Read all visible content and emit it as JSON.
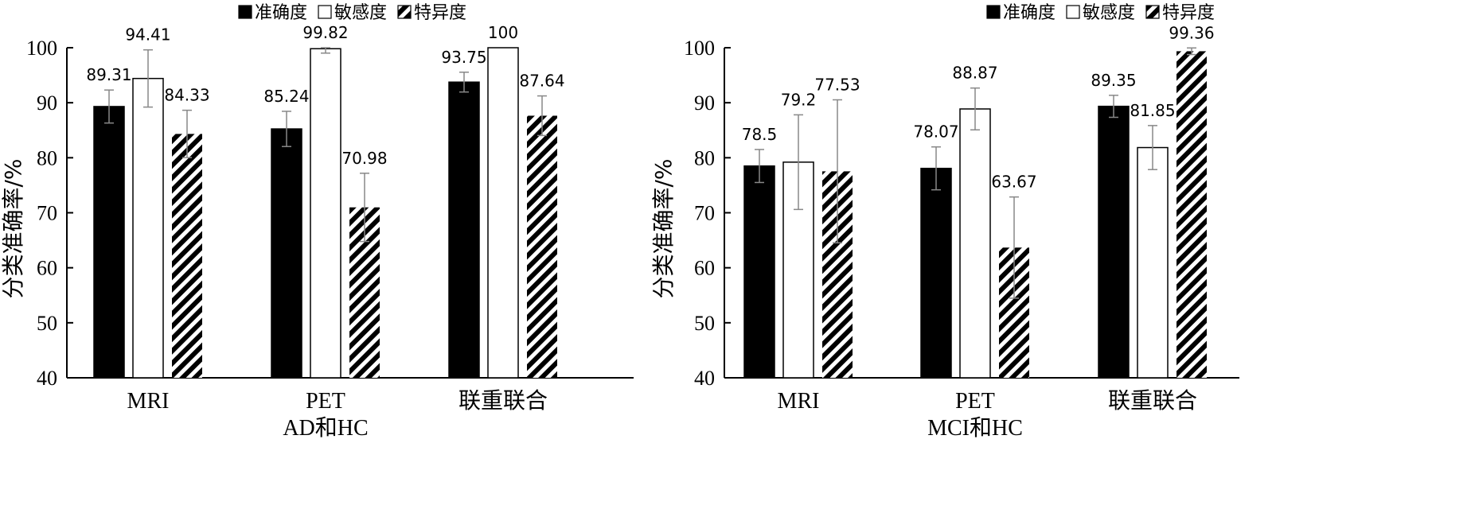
{
  "chart_data": [
    {
      "type": "bar",
      "title": "",
      "xlabel": "AD和HC",
      "ylabel": "分类准确率/%",
      "ylim": [
        40,
        100
      ],
      "yticks": [
        40,
        50,
        60,
        70,
        80,
        90,
        100
      ],
      "categories": [
        "MRI",
        "PET",
        "联重联合"
      ],
      "series": [
        {
          "name": "准确度",
          "values": [
            89.31,
            85.24,
            93.75
          ],
          "errors": [
            3.0,
            3.2,
            1.8
          ],
          "color": "#000000",
          "pattern": "solid"
        },
        {
          "name": "敏感度",
          "values": [
            94.41,
            99.82,
            100
          ],
          "errors": [
            5.2,
            0.8,
            0
          ],
          "color": "#ffffff",
          "pattern": "hollow"
        },
        {
          "name": "特异度",
          "values": [
            84.33,
            70.98,
            87.64
          ],
          "errors": [
            4.3,
            6.2,
            3.6
          ],
          "color": "#000000",
          "pattern": "hatch"
        }
      ],
      "legend": "top-center"
    },
    {
      "type": "bar",
      "title": "",
      "xlabel": "MCI和HC",
      "ylabel": "分类准确率/%",
      "ylim": [
        40,
        100
      ],
      "yticks": [
        40,
        50,
        60,
        70,
        80,
        90,
        100
      ],
      "categories": [
        "MRI",
        "PET",
        "联重联合"
      ],
      "series": [
        {
          "name": "准确度",
          "values": [
            78.5,
            78.07,
            89.35
          ],
          "errors": [
            3.0,
            3.9,
            2.0
          ],
          "color": "#000000",
          "pattern": "solid"
        },
        {
          "name": "敏感度",
          "values": [
            79.2,
            88.87,
            81.85
          ],
          "errors": [
            8.6,
            3.8,
            4.0
          ],
          "color": "#ffffff",
          "pattern": "hollow"
        },
        {
          "name": "特异度",
          "values": [
            77.53,
            63.67,
            99.36
          ],
          "errors": [
            13.0,
            9.2,
            0.6
          ],
          "color": "#000000",
          "pattern": "hatch"
        }
      ],
      "legend": "top-center"
    }
  ]
}
